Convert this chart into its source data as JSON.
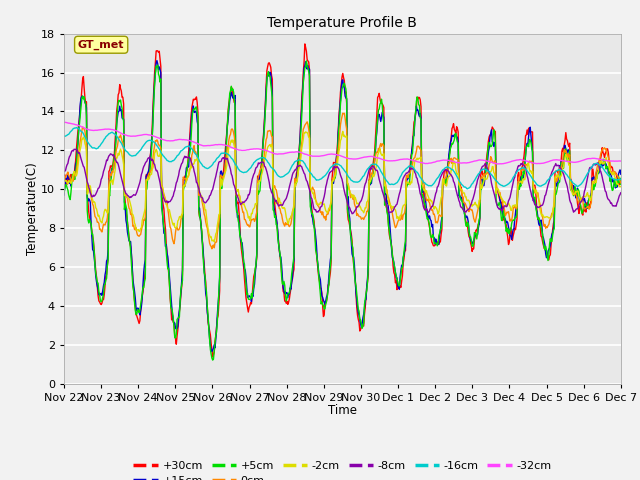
{
  "title": "Temperature Profile B",
  "xlabel": "Time",
  "ylabel": "Temperature(C)",
  "ylim": [
    0,
    18
  ],
  "annotation_text": "GT_met",
  "annotation_box_facecolor": "#FFFFA0",
  "annotation_text_color": "#880000",
  "annotation_edge_color": "#999900",
  "fig_facecolor": "#F2F2F2",
  "axes_facecolor": "#E8E8E8",
  "grid_color": "#FFFFFF",
  "x_tick_labels": [
    "Nov 22",
    "Nov 23",
    "Nov 24",
    "Nov 25",
    "Nov 26",
    "Nov 27",
    "Nov 28",
    "Nov 29",
    "Nov 30",
    "Dec 1",
    "Dec 2",
    "Dec 3",
    "Dec 4",
    "Dec 5",
    "Dec 6",
    "Dec 7"
  ],
  "series_colors": {
    "+30cm": "#FF0000",
    "+15cm": "#0000CC",
    "+5cm": "#00DD00",
    "0cm": "#FF8800",
    "-2cm": "#DDDD00",
    "-8cm": "#8800AA",
    "-16cm": "#00CCCC",
    "-32cm": "#FF44FF"
  },
  "series_lw": 1.0,
  "legend_lw": 2.5
}
